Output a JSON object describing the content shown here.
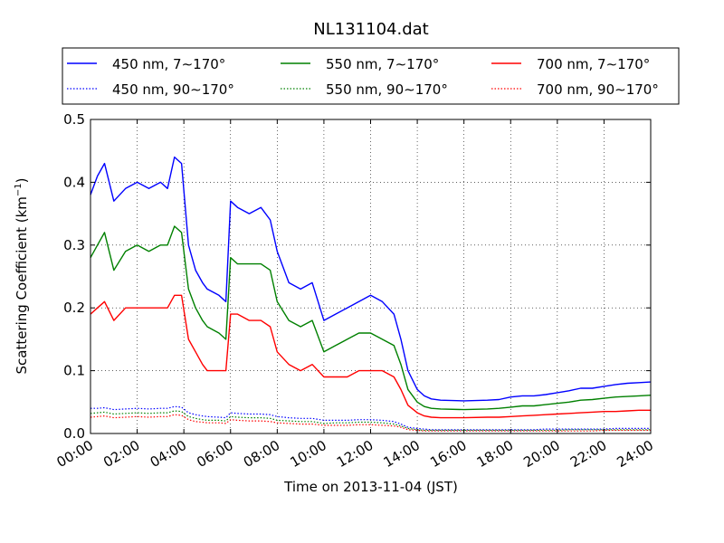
{
  "chart_data": {
    "type": "line",
    "title": "NL131104.dat",
    "xlabel": "Time on 2013-11-04 (JST)",
    "ylabel_main": "Scattering Coefficient (km",
    "ylabel_sup": "−1",
    "ylabel_end": ")",
    "xlim": [
      "00:00",
      "24:00"
    ],
    "ylim": [
      0,
      0.5
    ],
    "grid": true,
    "legend_position": "top",
    "x_ticks": [
      "00:00",
      "02:00",
      "04:00",
      "06:00",
      "08:00",
      "10:00",
      "12:00",
      "14:00",
      "16:00",
      "18:00",
      "20:00",
      "22:00",
      "24:00"
    ],
    "y_ticks": [
      "0.0",
      "0.1",
      "0.2",
      "0.3",
      "0.4",
      "0.5"
    ],
    "x_hours": [
      0,
      0.3,
      0.6,
      1,
      1.5,
      2,
      2.5,
      3,
      3.3,
      3.6,
      3.9,
      4.2,
      4.5,
      4.8,
      5,
      5.5,
      5.8,
      6,
      6.3,
      6.8,
      7.3,
      7.7,
      8,
      8.5,
      9,
      9.5,
      10,
      10.5,
      11,
      11.5,
      12,
      12.5,
      13,
      13.3,
      13.6,
      14,
      14.3,
      14.6,
      15,
      16,
      17,
      17.5,
      18,
      18.5,
      19,
      19.5,
      20,
      20.5,
      21,
      21.5,
      22,
      22.5,
      23,
      23.5,
      24
    ],
    "series": [
      {
        "name": "450 nm, 7∼170°",
        "color": "#0000ff",
        "style": "solid",
        "values": [
          0.38,
          0.41,
          0.43,
          0.37,
          0.39,
          0.4,
          0.39,
          0.4,
          0.39,
          0.44,
          0.43,
          0.3,
          0.26,
          0.24,
          0.23,
          0.22,
          0.21,
          0.37,
          0.36,
          0.35,
          0.36,
          0.34,
          0.29,
          0.24,
          0.23,
          0.24,
          0.18,
          0.19,
          0.2,
          0.21,
          0.22,
          0.21,
          0.19,
          0.15,
          0.1,
          0.07,
          0.06,
          0.055,
          0.053,
          0.052,
          0.053,
          0.054,
          0.058,
          0.06,
          0.06,
          0.062,
          0.065,
          0.068,
          0.072,
          0.072,
          0.075,
          0.078,
          0.08,
          0.081,
          0.082
        ]
      },
      {
        "name": "550 nm, 7∼170°",
        "color": "#008000",
        "style": "solid",
        "values": [
          0.28,
          0.3,
          0.32,
          0.26,
          0.29,
          0.3,
          0.29,
          0.3,
          0.3,
          0.33,
          0.32,
          0.23,
          0.2,
          0.18,
          0.17,
          0.16,
          0.15,
          0.28,
          0.27,
          0.27,
          0.27,
          0.26,
          0.21,
          0.18,
          0.17,
          0.18,
          0.13,
          0.14,
          0.15,
          0.16,
          0.16,
          0.15,
          0.14,
          0.11,
          0.07,
          0.05,
          0.043,
          0.04,
          0.039,
          0.038,
          0.039,
          0.04,
          0.042,
          0.044,
          0.044,
          0.046,
          0.048,
          0.05,
          0.053,
          0.054,
          0.056,
          0.058,
          0.059,
          0.06,
          0.061
        ]
      },
      {
        "name": "700 nm, 7∼170°",
        "color": "#ff0000",
        "style": "solid",
        "values": [
          0.19,
          0.2,
          0.21,
          0.18,
          0.2,
          0.2,
          0.2,
          0.2,
          0.2,
          0.22,
          0.22,
          0.15,
          0.13,
          0.11,
          0.1,
          0.1,
          0.1,
          0.19,
          0.19,
          0.18,
          0.18,
          0.17,
          0.13,
          0.11,
          0.1,
          0.11,
          0.09,
          0.09,
          0.09,
          0.1,
          0.1,
          0.1,
          0.09,
          0.07,
          0.045,
          0.033,
          0.028,
          0.026,
          0.025,
          0.025,
          0.026,
          0.026,
          0.027,
          0.028,
          0.029,
          0.03,
          0.031,
          0.032,
          0.033,
          0.034,
          0.035,
          0.035,
          0.036,
          0.037,
          0.037
        ]
      },
      {
        "name": "450 nm, 90∼170°",
        "color": "#0000ff",
        "style": "dotted",
        "values": [
          0.04,
          0.04,
          0.041,
          0.038,
          0.039,
          0.04,
          0.039,
          0.04,
          0.04,
          0.043,
          0.042,
          0.033,
          0.03,
          0.028,
          0.027,
          0.026,
          0.025,
          0.033,
          0.032,
          0.031,
          0.031,
          0.03,
          0.027,
          0.025,
          0.024,
          0.024,
          0.021,
          0.021,
          0.021,
          0.022,
          0.022,
          0.021,
          0.019,
          0.015,
          0.01,
          0.008,
          0.007,
          0.006,
          0.006,
          0.006,
          0.006,
          0.006,
          0.006,
          0.006,
          0.006,
          0.007,
          0.007,
          0.007,
          0.007,
          0.007,
          0.007,
          0.008,
          0.008,
          0.008,
          0.008
        ]
      },
      {
        "name": "550 nm, 90∼170°",
        "color": "#008000",
        "style": "dotted",
        "values": [
          0.032,
          0.033,
          0.034,
          0.031,
          0.032,
          0.033,
          0.032,
          0.033,
          0.033,
          0.036,
          0.035,
          0.027,
          0.024,
          0.022,
          0.021,
          0.021,
          0.02,
          0.027,
          0.026,
          0.025,
          0.025,
          0.024,
          0.021,
          0.02,
          0.019,
          0.019,
          0.016,
          0.017,
          0.017,
          0.018,
          0.018,
          0.017,
          0.015,
          0.012,
          0.008,
          0.006,
          0.005,
          0.005,
          0.005,
          0.005,
          0.005,
          0.005,
          0.005,
          0.005,
          0.005,
          0.005,
          0.005,
          0.006,
          0.006,
          0.006,
          0.006,
          0.006,
          0.006,
          0.006,
          0.006
        ]
      },
      {
        "name": "700 nm, 90∼170°",
        "color": "#ff0000",
        "style": "dotted",
        "values": [
          0.026,
          0.027,
          0.028,
          0.025,
          0.026,
          0.027,
          0.026,
          0.027,
          0.027,
          0.03,
          0.029,
          0.022,
          0.019,
          0.018,
          0.017,
          0.017,
          0.016,
          0.022,
          0.021,
          0.02,
          0.02,
          0.019,
          0.017,
          0.016,
          0.015,
          0.015,
          0.013,
          0.013,
          0.013,
          0.014,
          0.014,
          0.013,
          0.012,
          0.01,
          0.006,
          0.005,
          0.004,
          0.004,
          0.004,
          0.004,
          0.004,
          0.004,
          0.004,
          0.004,
          0.004,
          0.004,
          0.004,
          0.004,
          0.004,
          0.004,
          0.005,
          0.005,
          0.005,
          0.005,
          0.005
        ]
      }
    ]
  }
}
